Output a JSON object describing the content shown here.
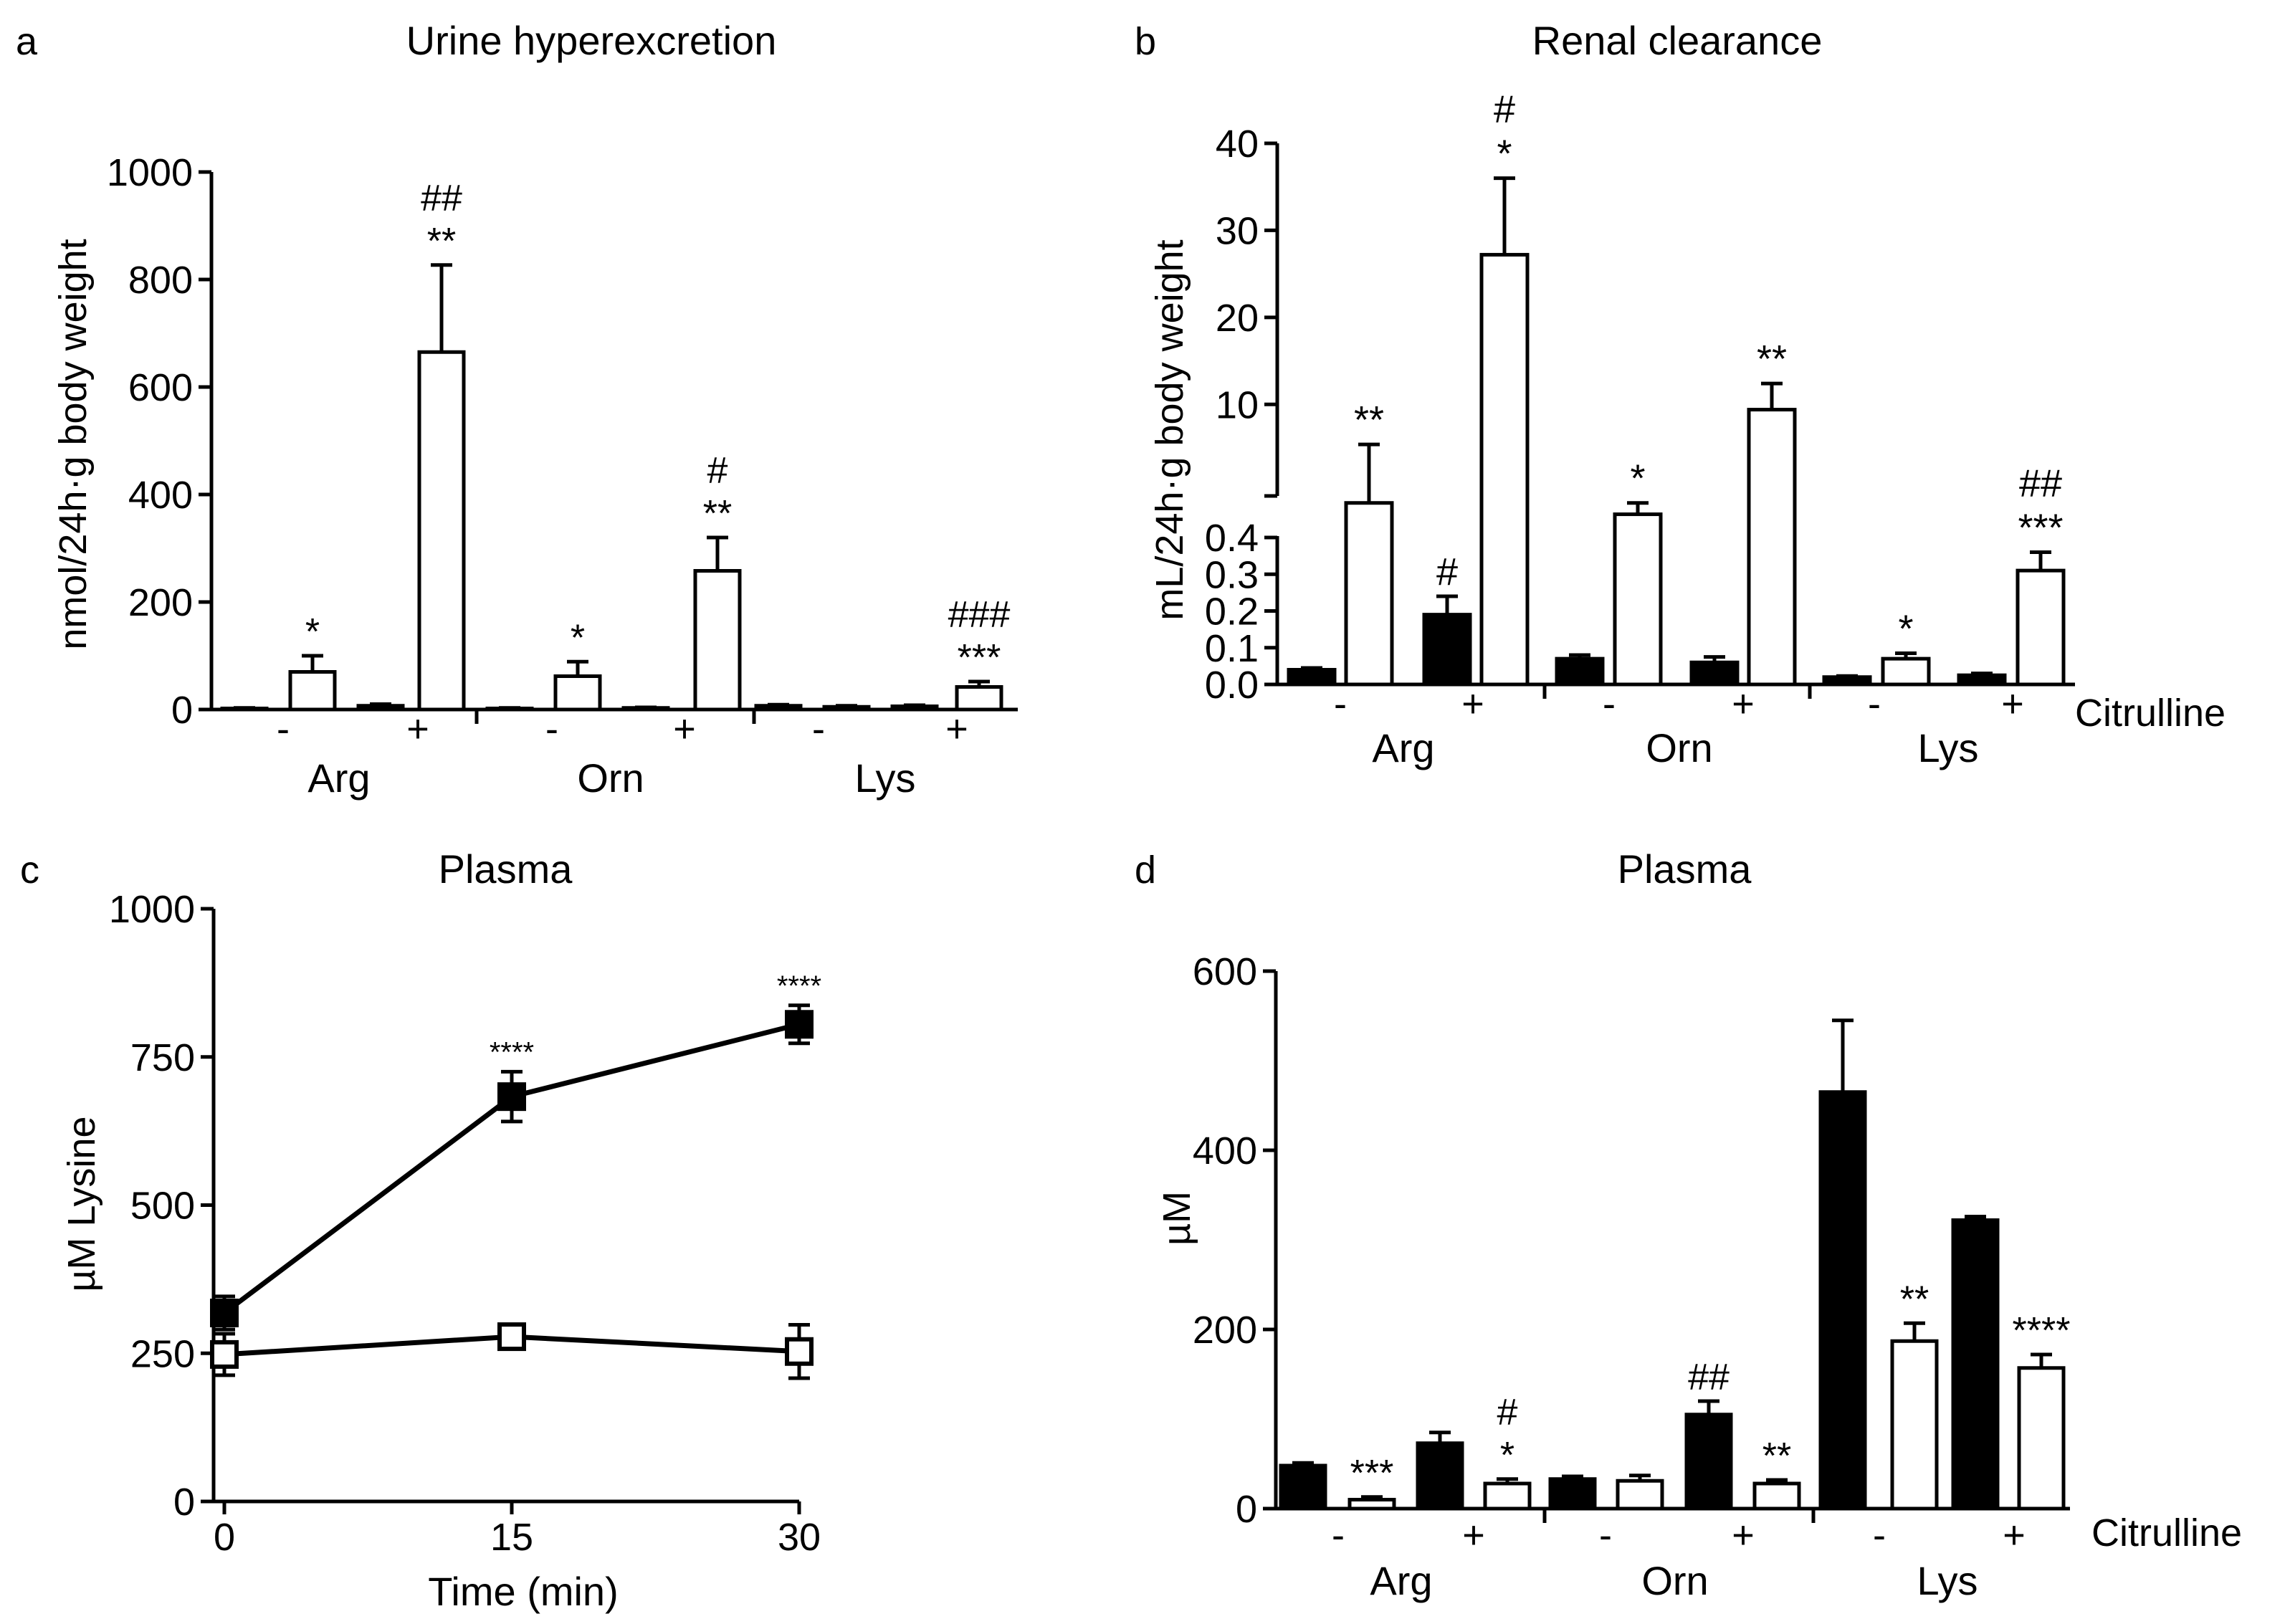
{
  "colors": {
    "filled": "#000000",
    "open": "#ffffff"
  },
  "panels": [
    {
      "letter": "a",
      "title": "Urine hyperexcretion",
      "ylabel": "nmol/24h·g body weight",
      "yticks": [
        "0",
        "200",
        "400",
        "600",
        "800",
        "1000"
      ],
      "citrulline_label": "",
      "groups": [
        "Arg",
        "Orn",
        "Lys"
      ],
      "citrulline_levels": [
        "-",
        "+"
      ]
    },
    {
      "letter": "b",
      "title": "Renal clearance",
      "ylabel": "mL/24h·g body weight",
      "yticks_lower": [
        "0.0",
        "0.1",
        "0.2",
        "0.3",
        "0.4"
      ],
      "yticks_upper": [
        "10",
        "20",
        "30",
        "40"
      ],
      "citrulline_label": "Citrulline",
      "groups": [
        "Arg",
        "Orn",
        "Lys"
      ],
      "citrulline_levels": [
        "-",
        "+"
      ]
    },
    {
      "letter": "c",
      "title": "Plasma",
      "ylabel": "µM Lysine",
      "xlabel": "Time (min)",
      "yticks": [
        "0",
        "250",
        "500",
        "750",
        "1000"
      ],
      "xticks": [
        "0",
        "15",
        "30"
      ]
    },
    {
      "letter": "d",
      "title": "Plasma",
      "ylabel": "µM",
      "yticks": [
        "0",
        "200",
        "400",
        "600"
      ],
      "citrulline_label": "Citrulline",
      "groups": [
        "Arg",
        "Orn",
        "Lys"
      ],
      "citrulline_levels": [
        "-",
        "+"
      ]
    }
  ],
  "chart_data": [
    {
      "type": "bar",
      "panel": "a",
      "title": "Urine hyperexcretion",
      "ylabel": "nmol/24h·g body weight",
      "ylim": [
        0,
        1000
      ],
      "categories": [
        "Arg -",
        "Arg +",
        "Orn -",
        "Orn +",
        "Lys -",
        "Lys +"
      ],
      "series": [
        {
          "name": "",
          "fill": "filled",
          "values": [
            2,
            7,
            2,
            3,
            7,
            6
          ],
          "errors": [
            1,
            3,
            1,
            1,
            2,
            2
          ],
          "annotations": [
            "",
            "",
            "",
            "",
            "",
            ""
          ]
        },
        {
          "name": "",
          "fill": "open",
          "values": [
            70,
            665,
            62,
            258,
            5,
            42
          ],
          "errors": [
            30,
            162,
            27,
            62,
            2,
            10
          ],
          "annotations": [
            "*",
            "**|##",
            "*",
            "**|#",
            "",
            "***|###"
          ]
        }
      ]
    },
    {
      "type": "bar",
      "panel": "b",
      "title": "Renal clearance",
      "ylabel": "mL/24h·g body weight",
      "ylim_lower": [
        0,
        0.4
      ],
      "ylim_upper": [
        5,
        40
      ],
      "axis_break": true,
      "categories": [
        "Arg -",
        "Arg +",
        "Orn -",
        "Orn +",
        "Lys -",
        "Lys +"
      ],
      "series": [
        {
          "name": "",
          "fill": "filled",
          "values": [
            0.04,
            0.19,
            0.07,
            0.06,
            0.02,
            0.025
          ],
          "errors": [
            0.005,
            0.05,
            0.01,
            0.015,
            0.003,
            0.005
          ],
          "annotations": [
            "",
            "#",
            "",
            "",
            "",
            ""
          ]
        },
        {
          "name": "",
          "fill": "open",
          "values": [
            4.2,
            27.2,
            2.9,
            9.4,
            0.07,
            0.31
          ],
          "errors": [
            1.2,
            8.8,
            1.3,
            3.0,
            0.015,
            0.05
          ],
          "annotations": [
            "**",
            "*|#",
            "*",
            "**",
            "*",
            "***|##"
          ]
        }
      ]
    },
    {
      "type": "line",
      "panel": "c",
      "title": "Plasma",
      "xlabel": "Time (min)",
      "ylabel": "µM Lysine",
      "xlim": [
        0,
        30
      ],
      "ylim": [
        0,
        1000
      ],
      "x": [
        0,
        15,
        30
      ],
      "series": [
        {
          "name": "",
          "fill": "filled",
          "values": [
            318,
            683,
            805
          ],
          "errors": [
            28,
            42,
            32
          ],
          "annotations": [
            "",
            "****",
            "****"
          ]
        },
        {
          "name": "",
          "fill": "open",
          "values": [
            248,
            278,
            253
          ],
          "errors": [
            35,
            12,
            45
          ],
          "annotations": [
            "",
            "",
            ""
          ]
        }
      ]
    },
    {
      "type": "bar",
      "panel": "d",
      "title": "Plasma",
      "ylabel": "µM",
      "ylim": [
        0,
        600
      ],
      "categories": [
        "Arg -",
        "Arg +",
        "Orn -",
        "Orn +",
        "Lys -",
        "Lys +"
      ],
      "series": [
        {
          "name": "",
          "fill": "filled",
          "values": [
            48,
            73,
            33,
            105,
            465,
            322
          ],
          "errors": [
            3,
            12,
            3,
            15,
            80,
            4
          ],
          "annotations": [
            "",
            "",
            "",
            "##",
            "",
            ""
          ]
        },
        {
          "name": "",
          "fill": "open",
          "values": [
            10,
            28,
            31,
            28,
            187,
            157
          ],
          "errors": [
            3,
            5,
            6,
            4,
            20,
            15
          ],
          "annotations": [
            "***",
            "*|#",
            "",
            "**",
            "**",
            "****"
          ]
        }
      ]
    }
  ]
}
